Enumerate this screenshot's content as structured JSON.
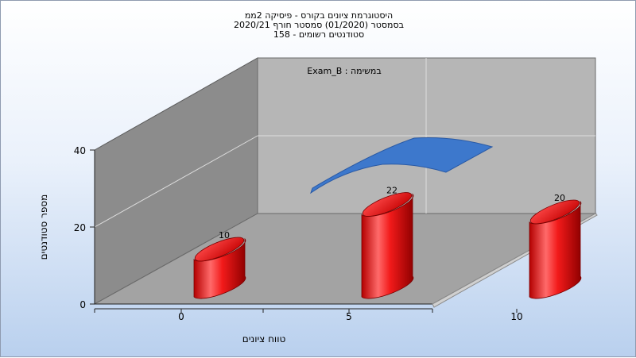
{
  "chart_data": {
    "type": "bar",
    "title_lines": [
      "היסטוגרמת ציונים בקורס - פיסיקה 2ממ",
      "בסמסטר  (01/2020)  סמסטר חורף  2020/21",
      "סטודנטים רשומים - 158"
    ],
    "inner_label": "במשימה : Exam_B",
    "xlabel": "טווח ציונים",
    "ylabel": "מספר סטודנטים",
    "x_ticks": [
      0,
      5,
      10
    ],
    "y_ticks": [
      0,
      20,
      40
    ],
    "ylim": [
      0,
      40
    ],
    "categories": [
      0,
      5,
      10
    ],
    "values": [
      10,
      22,
      20
    ],
    "bar_color": "#ee1111",
    "curve_color": "#3d78cc",
    "grid": true
  }
}
